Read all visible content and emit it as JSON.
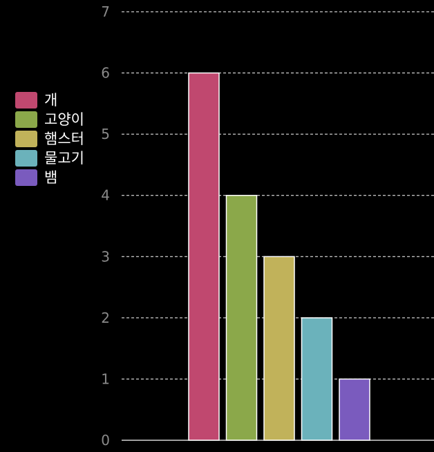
{
  "chart_data": {
    "type": "bar",
    "categories": [
      "개",
      "고양이",
      "햄스터",
      "물고기",
      "뱀"
    ],
    "values": [
      6,
      4,
      3,
      2,
      1
    ],
    "colors": [
      "#c0486f",
      "#8ba84a",
      "#c1b25a",
      "#6bb2bb",
      "#7a5bbe"
    ],
    "ylim": [
      0,
      7
    ],
    "yticks": [
      "0",
      "1",
      "2",
      "3",
      "4",
      "5",
      "6",
      "7"
    ],
    "grid": true,
    "legend_position": "left"
  }
}
